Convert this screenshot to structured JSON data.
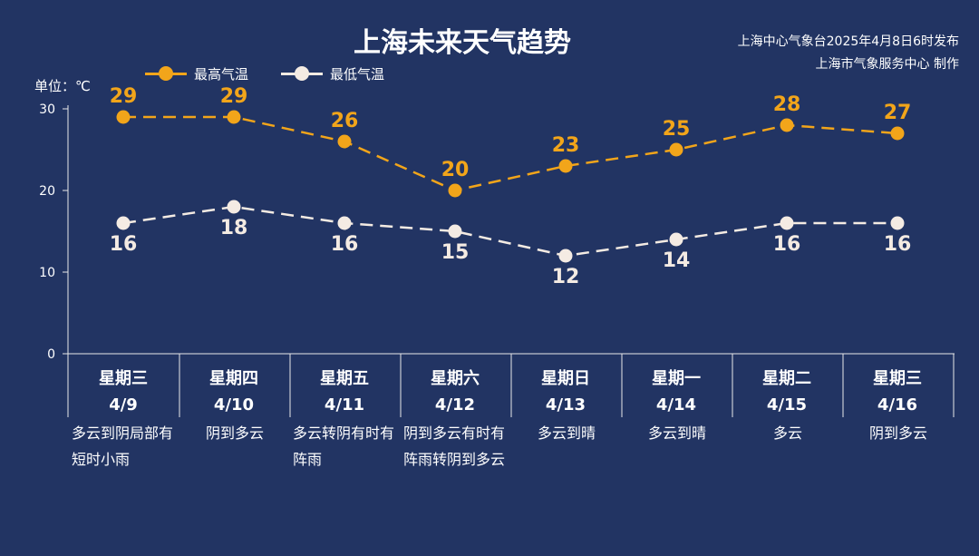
{
  "title": "上海未来天气趋势",
  "issuer_line1": "上海中心气象台2025年4月8日6时发布",
  "issuer_line2": "上海市气象服务中心 制作",
  "unit_label": "单位：℃",
  "colors": {
    "background": "#223463",
    "high": "#f2a51a",
    "low": "#f4ebe3",
    "axis": "#e8e8e8"
  },
  "chart_data": {
    "type": "line",
    "categories": [
      "4/9",
      "4/10",
      "4/11",
      "4/12",
      "4/13",
      "4/14",
      "4/15",
      "4/16"
    ],
    "weekdays": [
      "星期三",
      "星期四",
      "星期五",
      "星期六",
      "星期日",
      "星期一",
      "星期二",
      "星期三"
    ],
    "weather": [
      "多云到阴局部有短时小雨",
      "阴到多云",
      "多云转阴有时有阵雨",
      "阴到多云有时有阵雨转阴到多云",
      "多云到晴",
      "多云到晴",
      "多云",
      "阴到多云"
    ],
    "series": [
      {
        "name": "最高气温",
        "values": [
          29,
          29,
          26,
          20,
          23,
          25,
          28,
          27
        ]
      },
      {
        "name": "最低气温",
        "values": [
          16,
          18,
          16,
          15,
          12,
          14,
          16,
          16
        ]
      }
    ],
    "yticks": [
      0,
      10,
      20,
      30
    ],
    "ylim": [
      0,
      30
    ],
    "line_style": "dashed",
    "legend_position": "top-left",
    "grid": false
  }
}
